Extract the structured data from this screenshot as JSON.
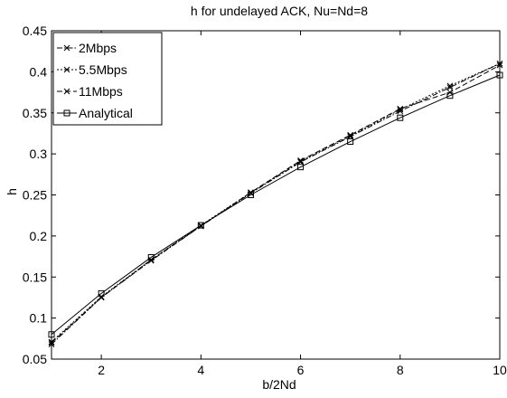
{
  "chart_data": {
    "type": "line",
    "title": "h for undelayed ACK, Nu=Nd=8",
    "xlabel": "b/2Nd",
    "ylabel": "h",
    "xlim": [
      1,
      10
    ],
    "ylim": [
      0.05,
      0.45
    ],
    "x_ticks": [
      2,
      4,
      6,
      8,
      10
    ],
    "x_tick_labels": [
      "2",
      "4",
      "6",
      "8",
      "10"
    ],
    "y_ticks": [
      0.05,
      0.1,
      0.15,
      0.2,
      0.25,
      0.3,
      0.35,
      0.4,
      0.45
    ],
    "y_tick_labels": [
      "0.05",
      "0.1",
      "0.15",
      "0.2",
      "0.25",
      "0.3",
      "0.35",
      "0.4",
      "0.45"
    ],
    "grid": false,
    "legend_position": "top-left",
    "x": [
      1,
      2,
      3,
      4,
      5,
      6,
      7,
      8,
      9,
      10
    ],
    "series": [
      {
        "name": "2Mbps",
        "marker": "x",
        "line": "dashdot",
        "values": [
          0.068,
          0.125,
          0.17,
          0.212,
          0.252,
          0.29,
          0.321,
          0.352,
          0.381,
          0.41
        ]
      },
      {
        "name": "5.5Mbps",
        "marker": "x",
        "line": "dotted",
        "values": [
          0.071,
          0.126,
          0.171,
          0.213,
          0.253,
          0.291,
          0.322,
          0.354,
          0.383,
          0.41
        ]
      },
      {
        "name": "11Mbps",
        "marker": "x",
        "line": "dashed",
        "values": [
          0.07,
          0.125,
          0.171,
          0.212,
          0.253,
          0.292,
          0.323,
          0.355,
          0.375,
          0.408
        ]
      },
      {
        "name": "Analytical",
        "marker": "square",
        "line": "solid",
        "values": [
          0.08,
          0.13,
          0.174,
          0.213,
          0.25,
          0.284,
          0.315,
          0.344,
          0.371,
          0.396
        ]
      }
    ],
    "colors": {
      "axes": "#000000",
      "series": "#000000",
      "background": "#ffffff"
    }
  }
}
